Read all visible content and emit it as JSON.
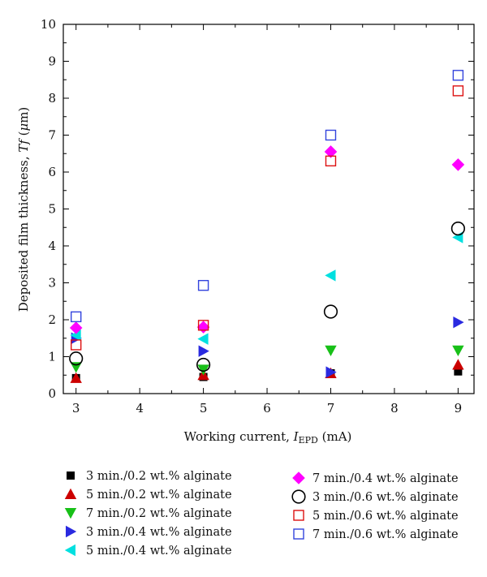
{
  "chart_data": {
    "type": "scatter",
    "xlabel": {
      "prefix": "Working current, ",
      "var": "I",
      "sub": "EPD",
      "suffix": " (mA)"
    },
    "ylabel": {
      "prefix": "Deposited film thickness, ",
      "var": "Tf",
      "open": " (",
      "mu": "μ",
      "suffix": "m)"
    },
    "xlim": [
      2.8,
      9.25
    ],
    "ylim": [
      0,
      10
    ],
    "xticks": [
      3,
      4,
      5,
      6,
      7,
      8,
      9
    ],
    "yticks": [
      0,
      1,
      2,
      3,
      4,
      5,
      6,
      7,
      8,
      9,
      10
    ],
    "grid": false,
    "legend_position": "bottom",
    "series": [
      {
        "name": "3 min./0.2 wt.% alginate",
        "marker": "square",
        "filled": true,
        "color": "#000000",
        "x": [
          3,
          5,
          7,
          9
        ],
        "y": [
          0.42,
          0.45,
          0.55,
          0.6
        ]
      },
      {
        "name": "5 min./0.2 wt.% alginate",
        "marker": "triangle-up",
        "filled": true,
        "color": "#cc0000",
        "x": [
          3,
          5,
          7,
          9
        ],
        "y": [
          0.42,
          0.5,
          0.55,
          0.78
        ]
      },
      {
        "name": "7 min./0.2 wt.% alginate",
        "marker": "triangle-down",
        "filled": true,
        "color": "#18c018",
        "x": [
          3,
          5,
          7,
          9
        ],
        "y": [
          0.72,
          0.65,
          1.17,
          1.17
        ]
      },
      {
        "name": "3 min./0.4 wt.% alginate",
        "marker": "triangle-right",
        "filled": true,
        "color": "#2a2ae0",
        "x": [
          3,
          5,
          7,
          9
        ],
        "y": [
          1.5,
          1.15,
          0.58,
          1.93
        ]
      },
      {
        "name": "5 min./0.4 wt.% alginate",
        "marker": "triangle-left",
        "filled": true,
        "color": "#00e0e0",
        "x": [
          3,
          5,
          7,
          9
        ],
        "y": [
          1.58,
          1.48,
          3.2,
          4.23
        ]
      },
      {
        "name": "7 min./0.4 wt.% alginate",
        "marker": "diamond",
        "filled": true,
        "color": "#ff00ff",
        "x": [
          3,
          5,
          7,
          9
        ],
        "y": [
          1.78,
          1.8,
          6.55,
          6.2
        ]
      },
      {
        "name": "3 min./0.6 wt.% alginate",
        "marker": "circle",
        "filled": false,
        "color": "#000000",
        "x": [
          3,
          5,
          7,
          9
        ],
        "y": [
          0.95,
          0.78,
          2.22,
          4.47
        ]
      },
      {
        "name": "5 min./0.6 wt.% alginate",
        "marker": "square",
        "filled": false,
        "color": "#dd1111",
        "x": [
          3,
          5,
          7,
          9
        ],
        "y": [
          1.32,
          1.85,
          6.3,
          8.2
        ]
      },
      {
        "name": "7 min./0.6 wt.% alginate",
        "marker": "square",
        "filled": false,
        "color": "#3344dd",
        "x": [
          3,
          5,
          7,
          9
        ],
        "y": [
          2.08,
          2.93,
          7.0,
          8.62
        ]
      }
    ]
  }
}
